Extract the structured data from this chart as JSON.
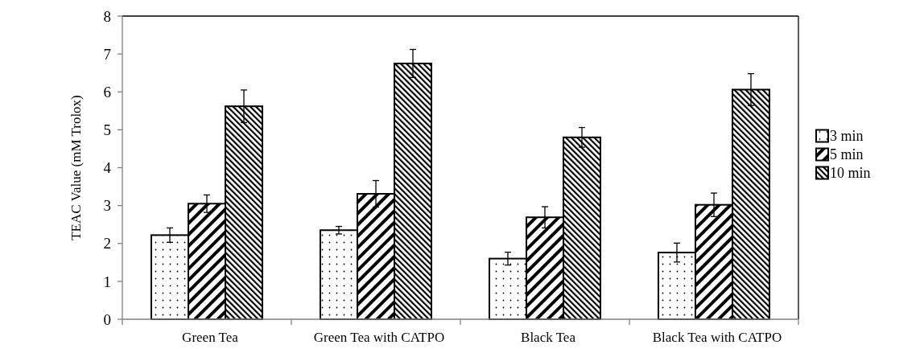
{
  "chart_data": {
    "type": "bar",
    "ylabel": "TEAC Value (mM Trolox)",
    "categories": [
      "Green Tea",
      "Green Tea with CATPO",
      "Black Tea",
      "Black Tea with CATPO"
    ],
    "series": [
      {
        "name": "3 min",
        "color": "#000000",
        "values": [
          2.22,
          2.35,
          1.6,
          1.76
        ],
        "errors": [
          0.19,
          0.1,
          0.17,
          0.25
        ]
      },
      {
        "name": "5 min",
        "color": "#000000",
        "values": [
          3.05,
          3.31,
          2.69,
          3.02
        ],
        "errors": [
          0.23,
          0.35,
          0.28,
          0.31
        ]
      },
      {
        "name": "10 min",
        "color": "#000000",
        "values": [
          5.62,
          6.75,
          4.8,
          6.06
        ],
        "errors": [
          0.43,
          0.37,
          0.26,
          0.42
        ]
      }
    ],
    "ylim": [
      0,
      8
    ],
    "yticks": [
      0,
      1,
      2,
      3,
      4,
      5,
      6,
      7,
      8
    ],
    "grid": false,
    "legend": "right"
  }
}
